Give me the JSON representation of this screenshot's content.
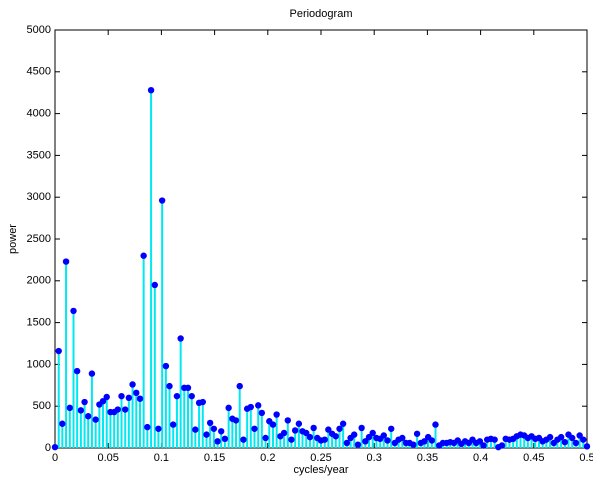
{
  "chart_data": {
    "type": "stem",
    "title": "Periodogram",
    "xlabel": "cycles/year",
    "ylabel": "power",
    "x": [
      0,
      0.0035,
      0.0069,
      0.0104,
      0.0139,
      0.0174,
      0.0208,
      0.0243,
      0.0278,
      0.0312,
      0.0347,
      0.0382,
      0.0417,
      0.0451,
      0.0486,
      0.0521,
      0.0556,
      0.059,
      0.0625,
      0.066,
      0.0694,
      0.0729,
      0.0764,
      0.0799,
      0.0833,
      0.0868,
      0.0903,
      0.0938,
      0.0972,
      0.1007,
      0.1042,
      0.1076,
      0.1111,
      0.1146,
      0.1181,
      0.1215,
      0.125,
      0.1285,
      0.1319,
      0.1354,
      0.1389,
      0.1424,
      0.1458,
      0.1493,
      0.1528,
      0.1562,
      0.1597,
      0.1632,
      0.1667,
      0.1701,
      0.1736,
      0.1771,
      0.1806,
      0.184,
      0.1875,
      0.191,
      0.1944,
      0.1979,
      0.2014,
      0.2049,
      0.2083,
      0.2118,
      0.2153,
      0.2188,
      0.2222,
      0.2257,
      0.2292,
      0.2326,
      0.2361,
      0.2396,
      0.2431,
      0.2465,
      0.25,
      0.2535,
      0.2569,
      0.2604,
      0.2639,
      0.2674,
      0.2708,
      0.2743,
      0.2778,
      0.2812,
      0.2847,
      0.2882,
      0.2917,
      0.2951,
      0.2986,
      0.3021,
      0.3056,
      0.309,
      0.3125,
      0.316,
      0.3194,
      0.3229,
      0.3264,
      0.3299,
      0.3333,
      0.3368,
      0.3403,
      0.3438,
      0.3472,
      0.3507,
      0.3542,
      0.3576,
      0.3611,
      0.3646,
      0.3681,
      0.3715,
      0.375,
      0.3785,
      0.3819,
      0.3854,
      0.3889,
      0.3924,
      0.3958,
      0.3993,
      0.4028,
      0.4062,
      0.4097,
      0.4132,
      0.4167,
      0.4201,
      0.4236,
      0.4271,
      0.4306,
      0.434,
      0.4375,
      0.441,
      0.4444,
      0.4479,
      0.4514,
      0.4549,
      0.4583,
      0.4618,
      0.4653,
      0.4688,
      0.4722,
      0.4757,
      0.4792,
      0.4826,
      0.4861,
      0.4896,
      0.4931,
      0.4965,
      0.5
    ],
    "series": [
      {
        "color": "#00e8f0",
        "marker_color": "#0000ff",
        "values": [
          10,
          1160,
          290,
          2230,
          480,
          1640,
          920,
          450,
          550,
          380,
          890,
          340,
          520,
          560,
          610,
          430,
          430,
          460,
          620,
          460,
          600,
          760,
          660,
          590,
          2300,
          250,
          4280,
          1950,
          230,
          2960,
          980,
          740,
          280,
          620,
          1310,
          720,
          720,
          620,
          220,
          540,
          550,
          160,
          300,
          230,
          80,
          200,
          110,
          480,
          350,
          330,
          740,
          100,
          470,
          490,
          230,
          510,
          420,
          120,
          320,
          280,
          400,
          140,
          180,
          330,
          100,
          210,
          290,
          200,
          180,
          130,
          240,
          120,
          90,
          100,
          220,
          170,
          140,
          230,
          290,
          60,
          120,
          160,
          40,
          240,
          80,
          130,
          180,
          120,
          110,
          150,
          90,
          230,
          60,
          100,
          120,
          60,
          60,
          40,
          170,
          60,
          80,
          130,
          90,
          280,
          30,
          60,
          60,
          70,
          60,
          90,
          50,
          80,
          60,
          100,
          60,
          80,
          30,
          100,
          110,
          100,
          10,
          30,
          110,
          100,
          110,
          140,
          160,
          150,
          120,
          140,
          110,
          120,
          80,
          100,
          130,
          60,
          100,
          130,
          70,
          160,
          120,
          60,
          150,
          100,
          20
        ]
      }
    ],
    "xlim": [
      0,
      0.5
    ],
    "xticks": [
      0,
      0.05,
      0.1,
      0.15,
      0.2,
      0.25,
      0.3,
      0.35,
      0.4,
      0.45,
      0.5
    ],
    "ylim": [
      0,
      5000
    ],
    "yticks": [
      0,
      500,
      1000,
      1500,
      2000,
      2500,
      3000,
      3500,
      4000,
      4500,
      5000
    ],
    "grid": false
  }
}
